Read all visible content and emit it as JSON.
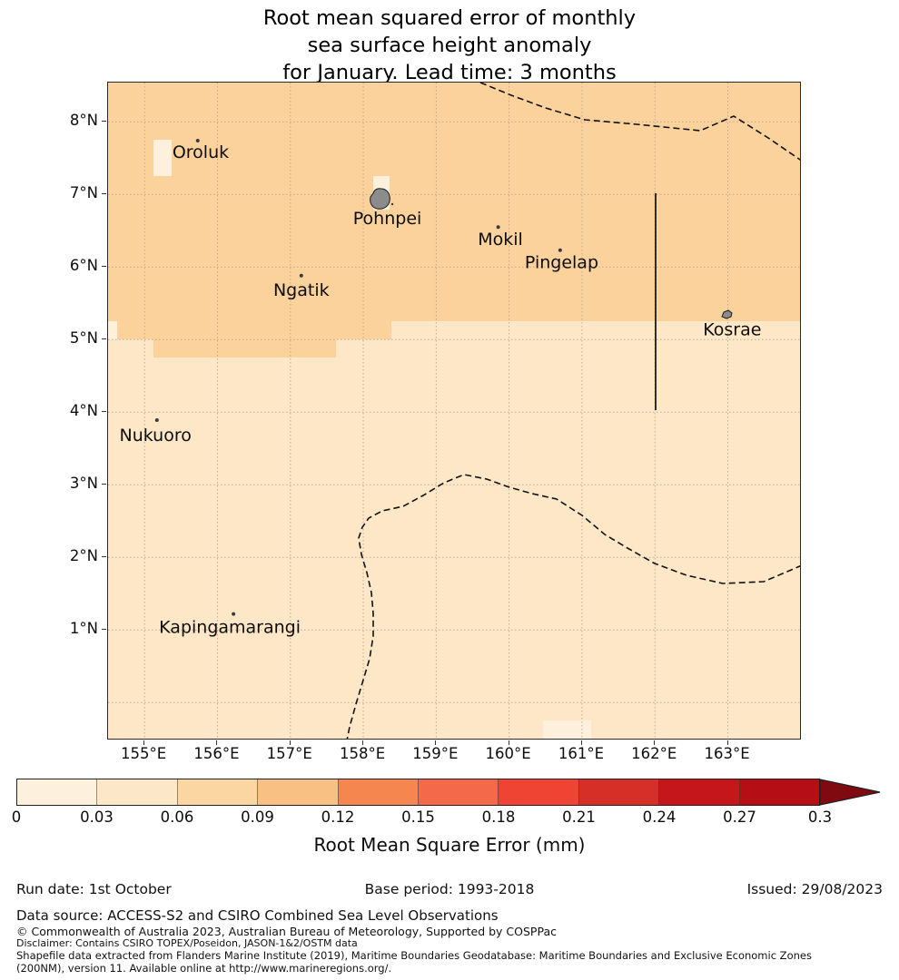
{
  "title": {
    "lines": [
      "Root mean squared error of monthly",
      "sea surface height anomaly",
      "for January. Lead time: 3 months"
    ]
  },
  "map": {
    "x_ticks": [
      "155°E",
      "156°E",
      "157°E",
      "158°E",
      "159°E",
      "160°E",
      "161°E",
      "162°E",
      "163°E"
    ],
    "y_ticks": [
      "8°N",
      "7°N",
      "6°N",
      "5°N",
      "4°N",
      "3°N",
      "2°N",
      "1°N"
    ],
    "islands": [
      {
        "name": "Oroluk",
        "marker": "dot",
        "lon": 155.73,
        "lat": 7.74,
        "label_lon": 155.77,
        "label_lat": 7.57
      },
      {
        "name": "Pohnpei",
        "marker": "island",
        "lon": 158.24,
        "lat": 6.92,
        "label_lon": 158.33,
        "label_lat": 6.66
      },
      {
        "name": "Mokil",
        "marker": "dot",
        "lon": 159.85,
        "lat": 6.55,
        "label_lon": 159.88,
        "label_lat": 6.37
      },
      {
        "name": "Pingelap",
        "marker": "dot",
        "lon": 160.7,
        "lat": 6.23,
        "label_lon": 160.72,
        "label_lat": 6.05
      },
      {
        "name": "Ngatik",
        "marker": "dot",
        "lon": 157.15,
        "lat": 5.88,
        "label_lon": 157.15,
        "label_lat": 5.67
      },
      {
        "name": "Kosrae",
        "marker": "island",
        "lon": 162.98,
        "lat": 5.34,
        "label_lon": 163.06,
        "label_lat": 5.13
      },
      {
        "name": "Nukuoro",
        "marker": "dot",
        "lon": 155.17,
        "lat": 3.89,
        "label_lon": 155.15,
        "label_lat": 3.67
      },
      {
        "name": "Kapingamarangi",
        "marker": "dot",
        "lon": 156.22,
        "lat": 1.22,
        "label_lon": 156.17,
        "label_lat": 1.03
      }
    ],
    "colors": {
      "rmse_0_003": "#fdf0dc",
      "rmse_003_006": "#fde7c6",
      "rmse_006_009": "#fbd29c",
      "island_fill": "#8c8c8c",
      "island_edge": "#1a1a1a",
      "grid": "#b3a28c",
      "boundary_dashed": "#111111",
      "boundary_solid": "#1a1a1a"
    }
  },
  "colorbar": {
    "label": "Root Mean Square Error (mm)",
    "ticks": [
      "0",
      "0.03",
      "0.06",
      "0.09",
      "0.12",
      "0.15",
      "0.18",
      "0.21",
      "0.24",
      "0.27",
      "0.3"
    ],
    "segment_colors": [
      "#fdf0dc",
      "#fce7c8",
      "#fbd6a3",
      "#f9c084",
      "#f6864f",
      "#f4694a",
      "#ef4433",
      "#d62f27",
      "#c5161c",
      "#b60e15"
    ],
    "arrow_color": "#7f0a10"
  },
  "footer": {
    "run_date": "Run date: 1st October",
    "base_period": "Base period: 1993-2018",
    "issued": "Issued: 29/08/2023",
    "data_source": "Data source: ACCESS-S2 and CSIRO Combined Sea Level Observations",
    "copyright": "© Commonwealth of Australia 2023, Australian Bureau of Meteorology, Supported by COSPPac",
    "disclaimer": "Disclaimer: Contains CSIRO TOPEX/Poseidon, JASON-1&2/OSTM data",
    "shapefile_line1": "Shapefile data extracted from Flanders Marine Institute (2019), Maritime Boundaries Geodatabase: Maritime Boundaries and Exclusive Economic Zones",
    "shapefile_line2": "(200NM), version 11. Available online at http://www.marineregions.org/."
  },
  "chart_data": {
    "type": "heatmap",
    "title": "Root mean squared error of monthly sea surface height anomaly for January. Lead time: 3 months",
    "colorbar_label": "Root Mean Square Error (mm)",
    "colorbar_range": [
      0,
      0.3
    ],
    "colorbar_tick_step": 0.03,
    "colorbar_extend": "max",
    "lon_extent_deg_east": [
      154.5,
      164.0
    ],
    "lat_extent_deg_north": [
      -0.5,
      8.54
    ],
    "regions": [
      {
        "area": "north of ~5°N (main band incl. Oroluk, Pohnpei, Mokil, Pingelap, Ngatik, Kosrae)",
        "rmse_mm": "0.06-0.09"
      },
      {
        "area": "south of ~5°N (Nukuoro, Kapingamarangi)",
        "rmse_mm": "0.03-0.06"
      },
      {
        "area": "small patches near Oroluk, Pohnpei, west edge at 5°N, south edge ~161°E",
        "rmse_mm": "0-0.03"
      }
    ],
    "boundaries": [
      "dashed EEZ boundary across north (~8°N) exiting right edge at ~7.4°N",
      "dashed EEZ boundary across south (~2-3°N) dropping to bottom edge near 158°E",
      "solid maritime boundary along 162°E from 7°N to 4°N"
    ]
  }
}
